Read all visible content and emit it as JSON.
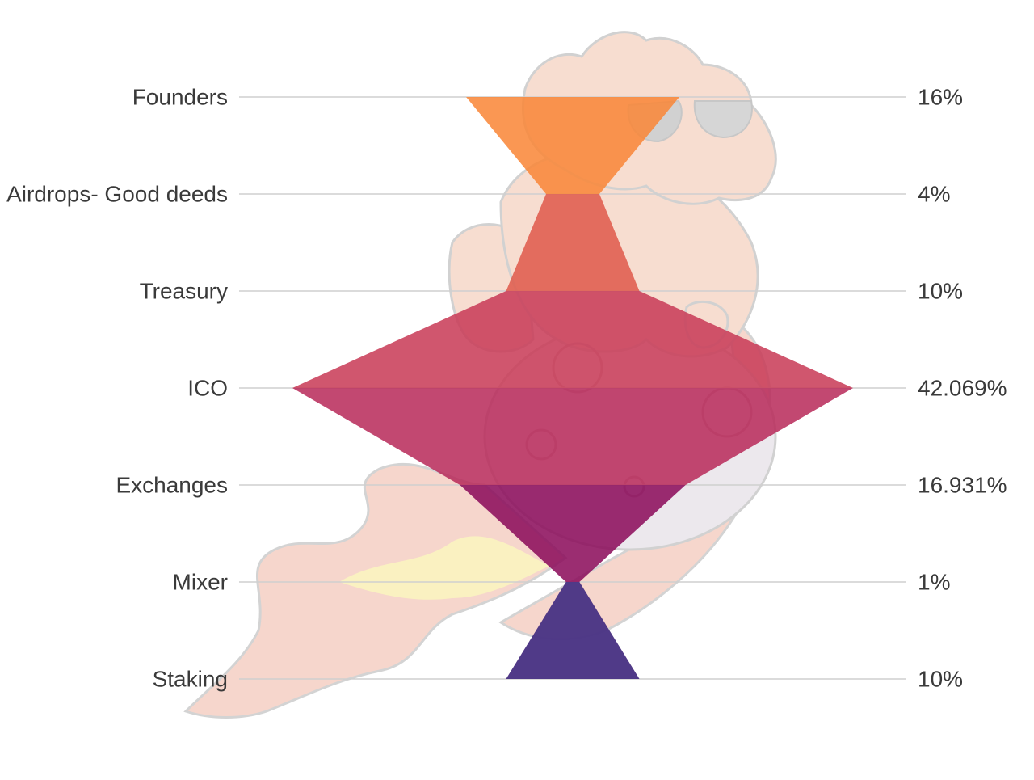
{
  "chart_data": {
    "type": "funnel",
    "title": "",
    "categories": [
      "Founders",
      "Airdrops- Good deeds",
      "Treasury",
      "ICO",
      "Exchanges",
      "Mixer",
      "Staking"
    ],
    "values": [
      16,
      4,
      10,
      42.069,
      16.931,
      1,
      10
    ],
    "value_labels": [
      "16%",
      "4%",
      "10%",
      "42.069%",
      "16.931%",
      "1%",
      "10%"
    ],
    "unit": "%",
    "colors": [
      "#f98637",
      "#e05a4a",
      "#c83a56",
      "#b82a5a",
      "#8a0b5a",
      "#5a1860",
      "#4b3a8c"
    ],
    "grid": true
  },
  "background_mascot": {
    "kind": "watermark illustration",
    "icon": "mascot-illustration",
    "colors": {
      "body": "#f6d7c8",
      "outline": "#c9c9c9",
      "flame": "#f2b8a8",
      "glow": "#fbf3b8"
    }
  }
}
